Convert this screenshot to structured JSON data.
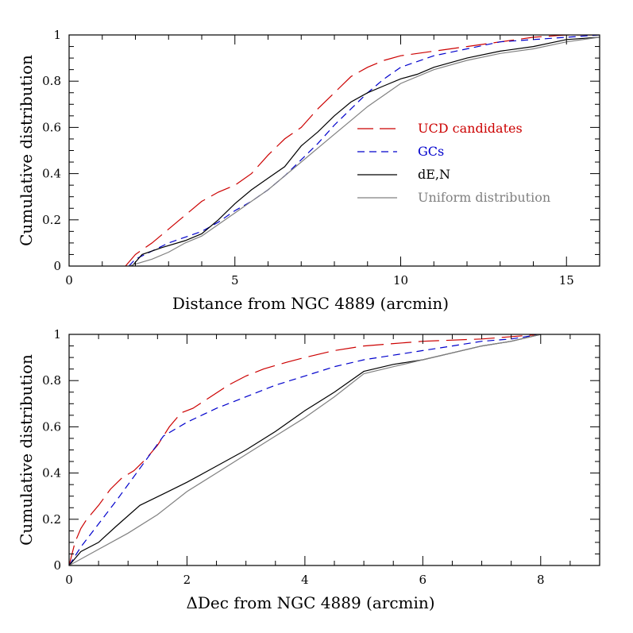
{
  "chart_data": [
    {
      "type": "line",
      "xlabel": "Distance from NGC 4889 (arcmin)",
      "ylabel": "Cumulative distribution",
      "xlim": [
        0,
        16
      ],
      "ylim": [
        0,
        1
      ],
      "xticks": [
        0,
        5,
        10,
        15
      ],
      "yticks": [
        0,
        0.2,
        0.4,
        0.6,
        0.8,
        1
      ],
      "ytick_labels": [
        "0",
        "0.2",
        "0.4",
        "0.6",
        "0.8",
        "1"
      ],
      "legend_position": "center-right",
      "series": [
        {
          "name": "UCD candidates",
          "color": "#cc0000",
          "dash": "long",
          "x": [
            1.7,
            2.0,
            2.5,
            3.0,
            3.5,
            4.0,
            4.5,
            5.0,
            5.5,
            6.0,
            6.5,
            7.0,
            7.5,
            8.0,
            8.5,
            9.0,
            9.5,
            10.0,
            11.0,
            12.0,
            13.0,
            14.0,
            15.0,
            16.0
          ],
          "y": [
            0,
            0.05,
            0.1,
            0.16,
            0.22,
            0.28,
            0.32,
            0.35,
            0.4,
            0.48,
            0.55,
            0.6,
            0.68,
            0.75,
            0.82,
            0.86,
            0.89,
            0.91,
            0.93,
            0.95,
            0.97,
            0.99,
            1.0,
            1.0
          ]
        },
        {
          "name": "GCs",
          "color": "#0000cc",
          "dash": "short",
          "x": [
            1.8,
            2.0,
            3.0,
            4.0,
            4.5,
            5.0,
            5.5,
            6.0,
            6.5,
            7.0,
            7.5,
            8.0,
            8.5,
            9.0,
            9.5,
            10.0,
            11.0,
            12.0,
            13.0,
            14.0,
            15.0,
            16.0
          ],
          "y": [
            0,
            0.03,
            0.1,
            0.15,
            0.19,
            0.24,
            0.28,
            0.33,
            0.39,
            0.46,
            0.53,
            0.61,
            0.68,
            0.75,
            0.81,
            0.86,
            0.91,
            0.94,
            0.97,
            0.98,
            0.99,
            1.0
          ]
        },
        {
          "name": "dE,N",
          "color": "#000000",
          "dash": "solid",
          "x": [
            1.9,
            2.2,
            2.8,
            3.5,
            4.0,
            4.5,
            5.0,
            5.5,
            6.0,
            6.5,
            7.0,
            7.5,
            8.0,
            8.5,
            9.0,
            9.5,
            10.0,
            10.5,
            11.0,
            12.0,
            13.0,
            14.0,
            15.0,
            16.0
          ],
          "y": [
            0,
            0.05,
            0.08,
            0.11,
            0.14,
            0.2,
            0.27,
            0.33,
            0.38,
            0.43,
            0.52,
            0.58,
            0.65,
            0.71,
            0.75,
            0.78,
            0.81,
            0.83,
            0.86,
            0.9,
            0.93,
            0.95,
            0.98,
            0.99
          ]
        },
        {
          "name": "Uniform distribution",
          "color": "#808080",
          "dash": "solid",
          "x": [
            1.8,
            2.5,
            3.0,
            3.5,
            4.0,
            4.5,
            5.0,
            5.5,
            6.0,
            6.5,
            7.0,
            7.5,
            8.0,
            8.5,
            9.0,
            9.5,
            10.0,
            11.0,
            12.0,
            13.0,
            14.0,
            15.0,
            16.0
          ],
          "y": [
            0,
            0.03,
            0.06,
            0.1,
            0.13,
            0.18,
            0.23,
            0.28,
            0.33,
            0.39,
            0.45,
            0.51,
            0.57,
            0.63,
            0.69,
            0.74,
            0.79,
            0.85,
            0.89,
            0.92,
            0.94,
            0.97,
            0.99
          ]
        }
      ],
      "legend": [
        {
          "label": "UCD candidates",
          "color": "#cc0000",
          "dash": "long"
        },
        {
          "label": "GCs",
          "color": "#0000cc",
          "dash": "short"
        },
        {
          "label": "dE,N",
          "color": "#000000",
          "dash": "solid"
        },
        {
          "label": "Uniform distribution",
          "color": "#808080",
          "dash": "solid"
        }
      ]
    },
    {
      "type": "line",
      "xlabel": "ΔDec from NGC 4889 (arcmin)",
      "ylabel": "Cumulative distribution",
      "xlim": [
        0,
        9
      ],
      "ylim": [
        0,
        1
      ],
      "xticks": [
        0,
        2,
        4,
        6,
        8
      ],
      "yticks": [
        0,
        0.2,
        0.4,
        0.6,
        0.8,
        1
      ],
      "ytick_labels": [
        "0",
        "0.2",
        "0.4",
        "0.6",
        "0.8",
        "1"
      ],
      "series": [
        {
          "name": "UCD candidates",
          "color": "#cc0000",
          "dash": "long",
          "x": [
            0,
            0.1,
            0.2,
            0.3,
            0.5,
            0.7,
            0.9,
            1.1,
            1.3,
            1.5,
            1.7,
            1.9,
            2.1,
            2.4,
            2.7,
            3.0,
            3.3,
            3.7,
            4.0,
            4.5,
            5.0,
            6.0,
            7.0,
            8.0
          ],
          "y": [
            0,
            0.1,
            0.16,
            0.2,
            0.26,
            0.33,
            0.38,
            0.41,
            0.46,
            0.52,
            0.6,
            0.66,
            0.68,
            0.73,
            0.78,
            0.82,
            0.85,
            0.88,
            0.9,
            0.93,
            0.95,
            0.97,
            0.98,
            1.0
          ]
        },
        {
          "name": "GCs",
          "color": "#0000cc",
          "dash": "short",
          "x": [
            0,
            0.2,
            0.5,
            0.8,
            1.2,
            1.6,
            2.0,
            2.5,
            3.0,
            3.5,
            4.0,
            4.5,
            5.0,
            5.5,
            6.0,
            6.5,
            7.0,
            7.5,
            8.0
          ],
          "y": [
            0,
            0.08,
            0.18,
            0.28,
            0.42,
            0.56,
            0.62,
            0.68,
            0.73,
            0.78,
            0.82,
            0.86,
            0.89,
            0.91,
            0.93,
            0.95,
            0.97,
            0.98,
            1.0
          ]
        },
        {
          "name": "dE,N",
          "color": "#000000",
          "dash": "solid",
          "x": [
            0,
            0.2,
            0.5,
            0.8,
            1.2,
            1.6,
            2.0,
            2.5,
            3.0,
            3.5,
            4.0,
            4.5,
            5.0,
            5.5,
            6.0,
            6.5,
            7.0,
            7.5,
            8.0
          ],
          "y": [
            0,
            0.06,
            0.1,
            0.17,
            0.26,
            0.31,
            0.36,
            0.43,
            0.5,
            0.58,
            0.67,
            0.75,
            0.84,
            0.87,
            0.89,
            0.92,
            0.95,
            0.97,
            1.0
          ]
        },
        {
          "name": "Uniform distribution",
          "color": "#808080",
          "dash": "solid",
          "x": [
            0,
            0.5,
            1.0,
            1.5,
            2.0,
            2.5,
            3.0,
            3.5,
            4.0,
            4.5,
            5.0,
            5.5,
            6.0,
            6.5,
            7.0,
            7.5,
            8.0
          ],
          "y": [
            0,
            0.07,
            0.14,
            0.22,
            0.32,
            0.4,
            0.48,
            0.56,
            0.64,
            0.73,
            0.83,
            0.86,
            0.89,
            0.92,
            0.95,
            0.97,
            1.0
          ]
        }
      ]
    }
  ]
}
